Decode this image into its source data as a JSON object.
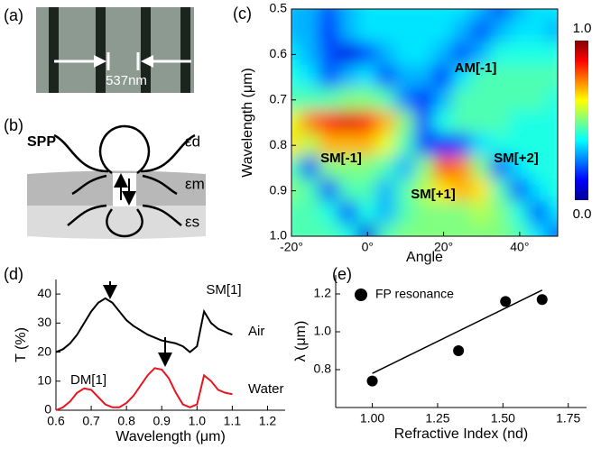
{
  "panel_labels": [
    "(a)",
    "(b)",
    "(c)",
    "(d)",
    "(e)"
  ],
  "sem_image": {
    "scale_label": "537nm"
  },
  "diagram": {
    "labels": [
      "SPP",
      "εd",
      "εm",
      "εs"
    ]
  },
  "chart_data": [
    {
      "type": "heatmap",
      "x_label": "Angle",
      "y_label": "Wavelength (μm)",
      "x": [
        -20,
        -15,
        -10,
        -5,
        0,
        5,
        10,
        15,
        20,
        25,
        30,
        35,
        40,
        45,
        50
      ],
      "y": [
        0.5,
        0.55,
        0.6,
        0.65,
        0.7,
        0.75,
        0.8,
        0.85,
        0.9,
        0.95,
        1.0
      ],
      "z": [
        [
          0.3,
          0.3,
          0.2,
          0.3,
          0.35,
          0.35,
          0.35,
          0.35,
          0.35,
          0.35,
          0.3,
          0.2,
          0.3,
          0.35,
          0.35
        ],
        [
          0.3,
          0.3,
          0.15,
          0.3,
          0.35,
          0.35,
          0.35,
          0.35,
          0.35,
          0.3,
          0.2,
          0.3,
          0.35,
          0.35,
          0.3
        ],
        [
          0.35,
          0.3,
          0.2,
          0.1,
          0.2,
          0.3,
          0.35,
          0.35,
          0.3,
          0.2,
          0.3,
          0.4,
          0.4,
          0.4,
          0.4
        ],
        [
          0.4,
          0.35,
          0.2,
          0.3,
          0.35,
          0.2,
          0.3,
          0.3,
          0.15,
          0.35,
          0.45,
          0.45,
          0.45,
          0.45,
          0.45
        ],
        [
          0.45,
          0.45,
          0.45,
          0.5,
          0.5,
          0.45,
          0.25,
          0.15,
          0.3,
          0.45,
          0.45,
          0.45,
          0.45,
          0.45,
          0.4
        ],
        [
          0.6,
          0.75,
          0.85,
          0.9,
          0.85,
          0.7,
          0.5,
          0.2,
          0.4,
          0.45,
          0.45,
          0.45,
          0.4,
          0.4,
          0.4
        ],
        [
          0.65,
          0.55,
          0.7,
          0.7,
          0.7,
          0.6,
          0.45,
          0.2,
          0.15,
          0.2,
          0.35,
          0.4,
          0.4,
          0.4,
          0.4
        ],
        [
          0.45,
          0.2,
          0.5,
          0.5,
          0.5,
          0.45,
          0.3,
          0.5,
          0.8,
          0.75,
          0.5,
          0.2,
          0.35,
          0.4,
          0.4
        ],
        [
          0.5,
          0.45,
          0.2,
          0.45,
          0.45,
          0.3,
          0.45,
          0.55,
          0.65,
          0.7,
          0.65,
          0.45,
          0.2,
          0.35,
          0.4
        ],
        [
          0.45,
          0.45,
          0.4,
          0.2,
          0.4,
          0.3,
          0.45,
          0.5,
          0.5,
          0.5,
          0.55,
          0.5,
          0.4,
          0.2,
          0.35
        ],
        [
          0.45,
          0.45,
          0.45,
          0.4,
          0.1,
          0.45,
          0.5,
          0.5,
          0.5,
          0.5,
          0.5,
          0.5,
          0.45,
          0.35,
          0.2
        ]
      ],
      "xlim": [
        -20,
        50
      ],
      "ylim": [
        0.5,
        1.0
      ],
      "xticks": [
        {
          "value": -20,
          "label": "-20°"
        },
        {
          "value": 0,
          "label": "0°"
        },
        {
          "value": 20,
          "label": "20°"
        },
        {
          "value": 40,
          "label": "40°"
        }
      ],
      "yticks": [
        0.5,
        0.6,
        0.7,
        0.8,
        0.9,
        {
          "value": 1.0,
          "label": "1.0"
        }
      ],
      "colormap": "jet",
      "colorbar": {
        "lim": [
          0,
          1
        ],
        "ticks": [
          {
            "value": 1,
            "label": "1.0"
          },
          {
            "value": 0,
            "label": "0.0"
          }
        ]
      },
      "annotations": [
        "AM[-1]",
        "SM[-1]",
        "SM[+2]",
        "SM[+1]"
      ]
    },
    {
      "type": "line",
      "x_label": "Wavelength (μm)",
      "y_label": "T (%)",
      "x": [
        0.6,
        0.62,
        0.64,
        0.66,
        0.68,
        0.7,
        0.72,
        0.74,
        0.76,
        0.78,
        0.8,
        0.82,
        0.84,
        0.86,
        0.88,
        0.9,
        0.92,
        0.94,
        0.96,
        0.98,
        1.0,
        1.02,
        1.04,
        1.06,
        1.08,
        1.1
      ],
      "series": [
        {
          "name": "Air",
          "color": "#000000",
          "values": [
            20,
            21,
            23,
            26,
            30,
            34,
            37,
            38.5,
            37,
            34,
            31,
            29,
            27.5,
            26,
            25,
            24,
            23.5,
            23,
            22,
            20,
            22,
            34,
            30,
            28,
            27,
            26
          ]
        },
        {
          "name": "Water",
          "color": "#e8141e",
          "values": [
            0,
            1,
            3,
            6,
            7.5,
            7,
            4.5,
            2,
            1,
            1,
            2.5,
            5,
            8.5,
            12,
            14.5,
            14,
            11,
            6,
            2,
            1,
            2,
            12,
            10,
            7,
            6,
            5.5
          ]
        }
      ],
      "xlim": [
        0.6,
        1.25
      ],
      "ylim": [
        0,
        45
      ],
      "xticks": [
        0.6,
        0.7,
        0.8,
        0.9,
        {
          "value": 1.0,
          "label": "1.0"
        },
        1.1,
        1.2
      ],
      "yticks": [
        0,
        10,
        20,
        30,
        40
      ],
      "annotations": [
        "SM[1]",
        "DM[1]"
      ]
    },
    {
      "type": "scatter",
      "x_label": "Refractive Index (nd)",
      "y_label": "λ (μm)",
      "series": [
        {
          "name": "FP resonance",
          "color": "#000000",
          "x": [
            1.0,
            1.33,
            1.51,
            1.65
          ],
          "values": [
            0.74,
            0.9,
            1.16,
            1.17
          ]
        }
      ],
      "fit": {
        "x": [
          1.0,
          1.65
        ],
        "values": [
          0.78,
          1.22
        ]
      },
      "xlim": [
        0.86,
        1.82
      ],
      "ylim": [
        0.6,
        1.3
      ],
      "xticks": [
        {
          "value": 1.0,
          "label": "1.00"
        },
        1.25,
        {
          "value": 1.5,
          "label": "1.50"
        },
        1.75
      ],
      "yticks": [
        0.8,
        {
          "value": 1.0,
          "label": "1.0"
        },
        1.2
      ],
      "legend": "upper left"
    }
  ]
}
